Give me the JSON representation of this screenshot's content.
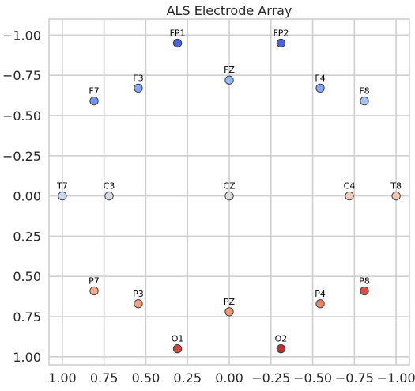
{
  "chart_data": {
    "type": "scatter",
    "title": "ALS Electrode Array",
    "xlabel": "",
    "ylabel": "",
    "xlim": [
      1.08,
      -1.08
    ],
    "ylim": [
      1.05,
      -1.1
    ],
    "x_ticks": [
      1.0,
      0.75,
      0.5,
      0.25,
      0.0,
      -0.25,
      -0.5,
      -0.75,
      -1.0
    ],
    "x_tick_labels": [
      "1.00",
      "0.75",
      "0.50",
      "0.25",
      "0.00",
      "−0.25",
      "−0.50",
      "−0.75",
      "−1.00"
    ],
    "y_ticks": [
      -1.0,
      -0.75,
      -0.5,
      -0.25,
      0.0,
      0.25,
      0.5,
      0.75,
      1.0
    ],
    "y_tick_labels": [
      "−1.00",
      "−0.75",
      "−0.50",
      "−0.25",
      "0.00",
      "0.25",
      "0.50",
      "0.75",
      "1.00"
    ],
    "grid": true,
    "points": [
      {
        "name": "FP1",
        "x": 0.31,
        "y": -0.95,
        "color": "#4a63d3"
      },
      {
        "name": "FP2",
        "x": -0.31,
        "y": -0.95,
        "color": "#4a63d3"
      },
      {
        "name": "F7",
        "x": 0.81,
        "y": -0.59,
        "color": "#7093f3"
      },
      {
        "name": "F3",
        "x": 0.545,
        "y": -0.67,
        "color": "#85a8fc"
      },
      {
        "name": "FZ",
        "x": 0.0,
        "y": -0.72,
        "color": "#92b4fe"
      },
      {
        "name": "F4",
        "x": -0.545,
        "y": -0.67,
        "color": "#85a8fc"
      },
      {
        "name": "F8",
        "x": -0.81,
        "y": -0.59,
        "color": "#a3c2fe"
      },
      {
        "name": "T7",
        "x": 1.0,
        "y": 0.0,
        "color": "#c9d7f0"
      },
      {
        "name": "C3",
        "x": 0.72,
        "y": 0.0,
        "color": "#d5dbe5"
      },
      {
        "name": "CZ",
        "x": 0.0,
        "y": 0.0,
        "color": "#dddcdc"
      },
      {
        "name": "C4",
        "x": -0.72,
        "y": 0.0,
        "color": "#f2cbb7"
      },
      {
        "name": "T8",
        "x": -1.0,
        "y": 0.0,
        "color": "#f4c5ad"
      },
      {
        "name": "P7",
        "x": 0.81,
        "y": 0.59,
        "color": "#f7aa8c"
      },
      {
        "name": "P3",
        "x": 0.545,
        "y": 0.67,
        "color": "#f6a385"
      },
      {
        "name": "PZ",
        "x": 0.0,
        "y": 0.72,
        "color": "#f39475"
      },
      {
        "name": "P4",
        "x": -0.545,
        "y": 0.67,
        "color": "#ee8468"
      },
      {
        "name": "P8",
        "x": -0.81,
        "y": 0.59,
        "color": "#d75445"
      },
      {
        "name": "O1",
        "x": 0.31,
        "y": 0.95,
        "color": "#d0473d"
      },
      {
        "name": "O2",
        "x": -0.31,
        "y": 0.95,
        "color": "#c32e31"
      }
    ]
  }
}
